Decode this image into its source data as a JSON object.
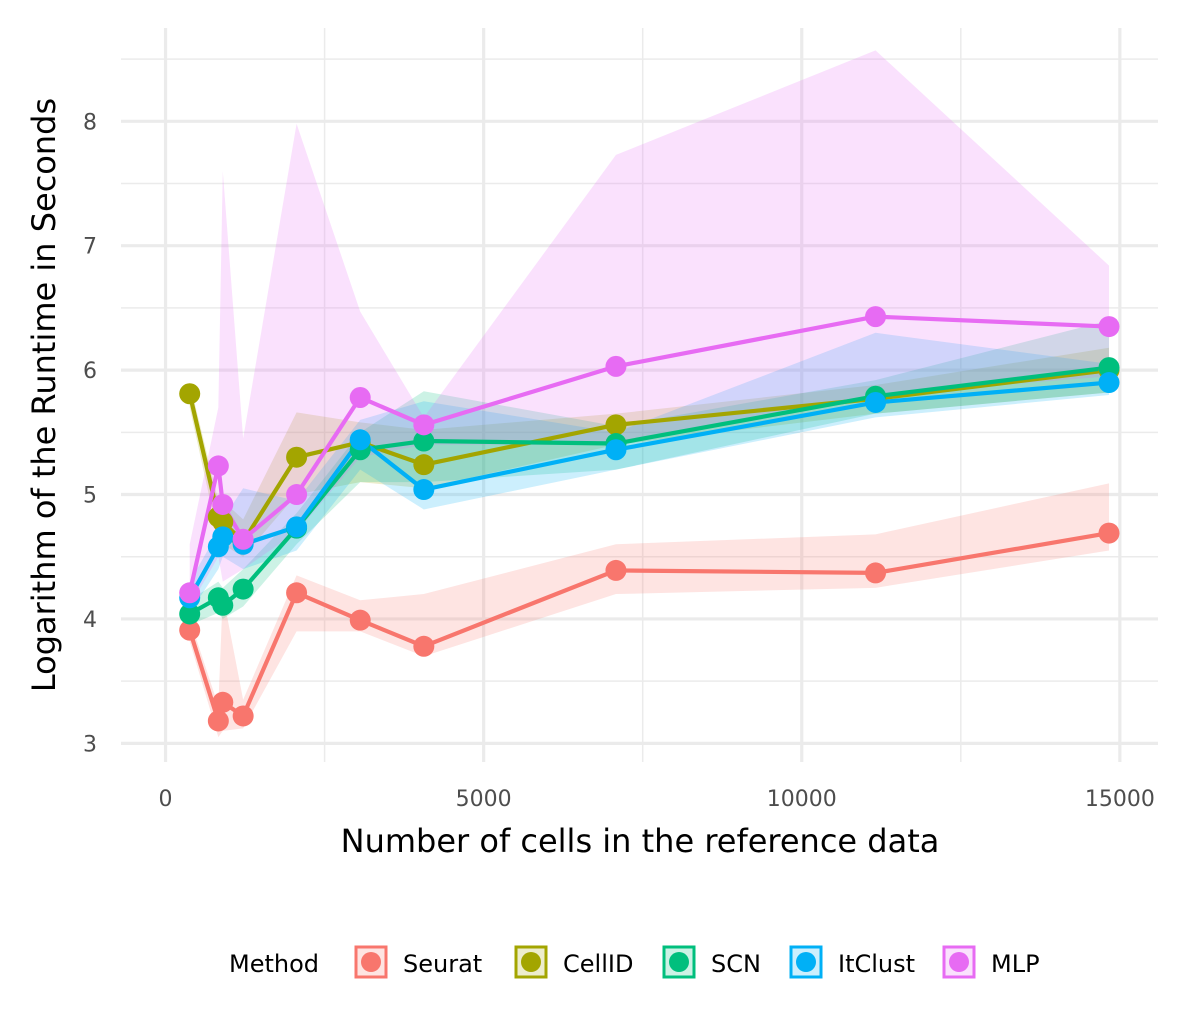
{
  "chart_data": {
    "type": "line",
    "title": "",
    "xlabel": "Number of cells in the reference data",
    "ylabel": "Logarithm of the Runtime in Seconds",
    "xlim": [
      -700,
      15600
    ],
    "ylim": [
      2.85,
      8.75
    ],
    "x_ticks": [
      0,
      5000,
      10000,
      15000
    ],
    "x_tick_labels": [
      "0",
      "5000",
      "10000",
      "15000"
    ],
    "y_ticks": [
      3,
      4,
      5,
      6,
      7,
      8
    ],
    "y_tick_labels": [
      "3",
      "4",
      "5",
      "6",
      "7",
      "8"
    ],
    "x_minor_ticks": [
      2500,
      7500,
      12500
    ],
    "y_minor_ticks": [
      3.5,
      4.5,
      5.5,
      6.5,
      7.5,
      8.5
    ],
    "grid": true,
    "legend": {
      "title": "Method",
      "placement": "bottom",
      "entries": [
        "Seurat",
        "CellID",
        "SCN",
        "ItClust",
        "MLP"
      ]
    },
    "series": [
      {
        "name": "Seurat",
        "color": "#F8766D",
        "x": [
          380,
          830,
          900,
          1220,
          2060,
          3060,
          4060,
          7080,
          11160,
          14830
        ],
        "values": [
          3.91,
          3.18,
          3.33,
          3.22,
          4.21,
          3.99,
          3.78,
          4.39,
          4.37,
          4.69
        ],
        "band_lower": [
          3.82,
          3.05,
          3.1,
          3.12,
          3.9,
          3.9,
          3.7,
          4.2,
          4.25,
          4.55
        ],
        "band_upper": [
          4.0,
          3.3,
          4.2,
          3.35,
          4.35,
          4.15,
          4.2,
          4.6,
          4.68,
          5.09
        ]
      },
      {
        "name": "CellID",
        "color": "#A3A500",
        "x": [
          380,
          830,
          900,
          1220,
          2060,
          3060,
          4060,
          7080,
          11160,
          14830
        ],
        "values": [
          5.81,
          4.82,
          4.78,
          4.62,
          5.3,
          5.42,
          5.24,
          5.56,
          5.77,
          6.0
        ],
        "band_lower": [
          5.7,
          4.65,
          4.6,
          4.5,
          5.0,
          5.1,
          5.05,
          5.4,
          5.65,
          5.82
        ],
        "band_upper": [
          5.9,
          4.95,
          4.95,
          4.8,
          5.66,
          5.58,
          5.52,
          5.65,
          5.88,
          6.18
        ]
      },
      {
        "name": "SCN",
        "color": "#00BF7D",
        "x": [
          380,
          830,
          900,
          1220,
          2060,
          3060,
          4060,
          7080,
          11160,
          14830
        ],
        "values": [
          4.04,
          4.17,
          4.11,
          4.24,
          4.73,
          5.36,
          5.43,
          5.41,
          5.79,
          6.02
        ],
        "band_lower": [
          3.95,
          4.05,
          4.0,
          4.1,
          4.6,
          5.1,
          5.1,
          5.2,
          5.65,
          5.82
        ],
        "band_upper": [
          4.15,
          4.3,
          4.25,
          4.4,
          4.85,
          5.5,
          5.83,
          5.55,
          5.92,
          6.4
        ]
      },
      {
        "name": "ItClust",
        "color": "#00B0F6",
        "x": [
          380,
          830,
          900,
          1220,
          2060,
          3060,
          4060,
          7080,
          11160,
          14830
        ],
        "values": [
          4.17,
          4.58,
          4.66,
          4.6,
          4.74,
          5.44,
          5.04,
          5.36,
          5.74,
          5.9
        ],
        "band_lower": [
          4.05,
          4.4,
          4.5,
          4.4,
          4.55,
          5.2,
          4.88,
          5.2,
          5.62,
          5.8
        ],
        "band_upper": [
          4.3,
          4.7,
          4.8,
          5.05,
          4.95,
          5.6,
          5.75,
          5.5,
          6.3,
          6.05
        ]
      },
      {
        "name": "MLP",
        "color": "#E76BF3",
        "x": [
          380,
          830,
          900,
          1220,
          2060,
          3060,
          4060,
          7080,
          11160,
          14830
        ],
        "values": [
          4.21,
          5.23,
          4.92,
          4.64,
          5.0,
          5.78,
          5.56,
          6.03,
          6.43,
          6.35
        ],
        "band_lower": [
          4.1,
          4.5,
          4.3,
          4.4,
          4.7,
          5.3,
          5.4,
          5.4,
          5.8,
          5.95
        ],
        "band_upper": [
          4.6,
          5.7,
          7.6,
          5.45,
          7.98,
          6.47,
          5.62,
          7.73,
          8.57,
          6.84
        ]
      }
    ]
  }
}
